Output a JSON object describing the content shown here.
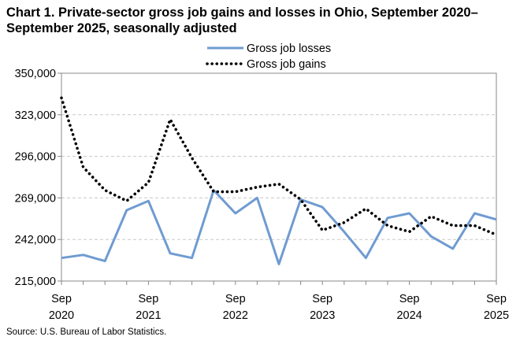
{
  "title": "Chart 1. Private-sector gross job gains and losses in Ohio, September 2020–September 2025, seasonally adjusted",
  "source": "Source: U.S. Bureau of Labor Statistics.",
  "chart_data": {
    "type": "line",
    "title": "Chart 1. Private-sector gross job gains and losses in Ohio, September 2020–September 2025, seasonally adjusted",
    "xlabel": "",
    "ylabel": "",
    "ylim": [
      215000,
      350000
    ],
    "yticks": [
      215000,
      242000,
      269000,
      296000,
      323000,
      350000
    ],
    "ytick_labels": [
      "215,000",
      "242,000",
      "269,000",
      "296,000",
      "323,000",
      "350,000"
    ],
    "x": [
      "Sep 2020",
      "Dec 2020",
      "Mar 2021",
      "Jun 2021",
      "Sep 2021",
      "Dec 2021",
      "Mar 2022",
      "Jun 2022",
      "Sep 2022",
      "Dec 2022",
      "Mar 2023",
      "Jun 2023",
      "Sep 2023",
      "Dec 2023",
      "Mar 2024",
      "Jun 2024",
      "Sep 2024",
      "Dec 2024",
      "Mar 2025",
      "Jun 2025",
      "Sep 2025"
    ],
    "xtick_labels": [
      {
        "month": "Sep",
        "year": "2020",
        "index": 0
      },
      {
        "month": "Sep",
        "year": "2021",
        "index": 4
      },
      {
        "month": "Sep",
        "year": "2022",
        "index": 8
      },
      {
        "month": "Sep",
        "year": "2023",
        "index": 12
      },
      {
        "month": "Sep",
        "year": "2024",
        "index": 16
      },
      {
        "month": "Sep",
        "year": "2025",
        "index": 20
      }
    ],
    "series": [
      {
        "name": "Gross job losses",
        "color": "#6f9bd1",
        "style": "solid",
        "values": [
          230000,
          232000,
          228000,
          261000,
          267000,
          233000,
          230000,
          274000,
          259000,
          269000,
          226000,
          268000,
          263000,
          247000,
          230000,
          256000,
          259000,
          244000,
          236000,
          259000,
          255000
        ]
      },
      {
        "name": "Gross job gains",
        "color": "#000000",
        "style": "dotted",
        "values": [
          334000,
          289000,
          274000,
          267000,
          279000,
          320000,
          295000,
          273000,
          273000,
          276000,
          278000,
          268000,
          248000,
          253000,
          262000,
          251000,
          247000,
          257000,
          251000,
          251000,
          245000
        ]
      }
    ],
    "grid": "horizontal dashed",
    "legend": "top-center"
  }
}
